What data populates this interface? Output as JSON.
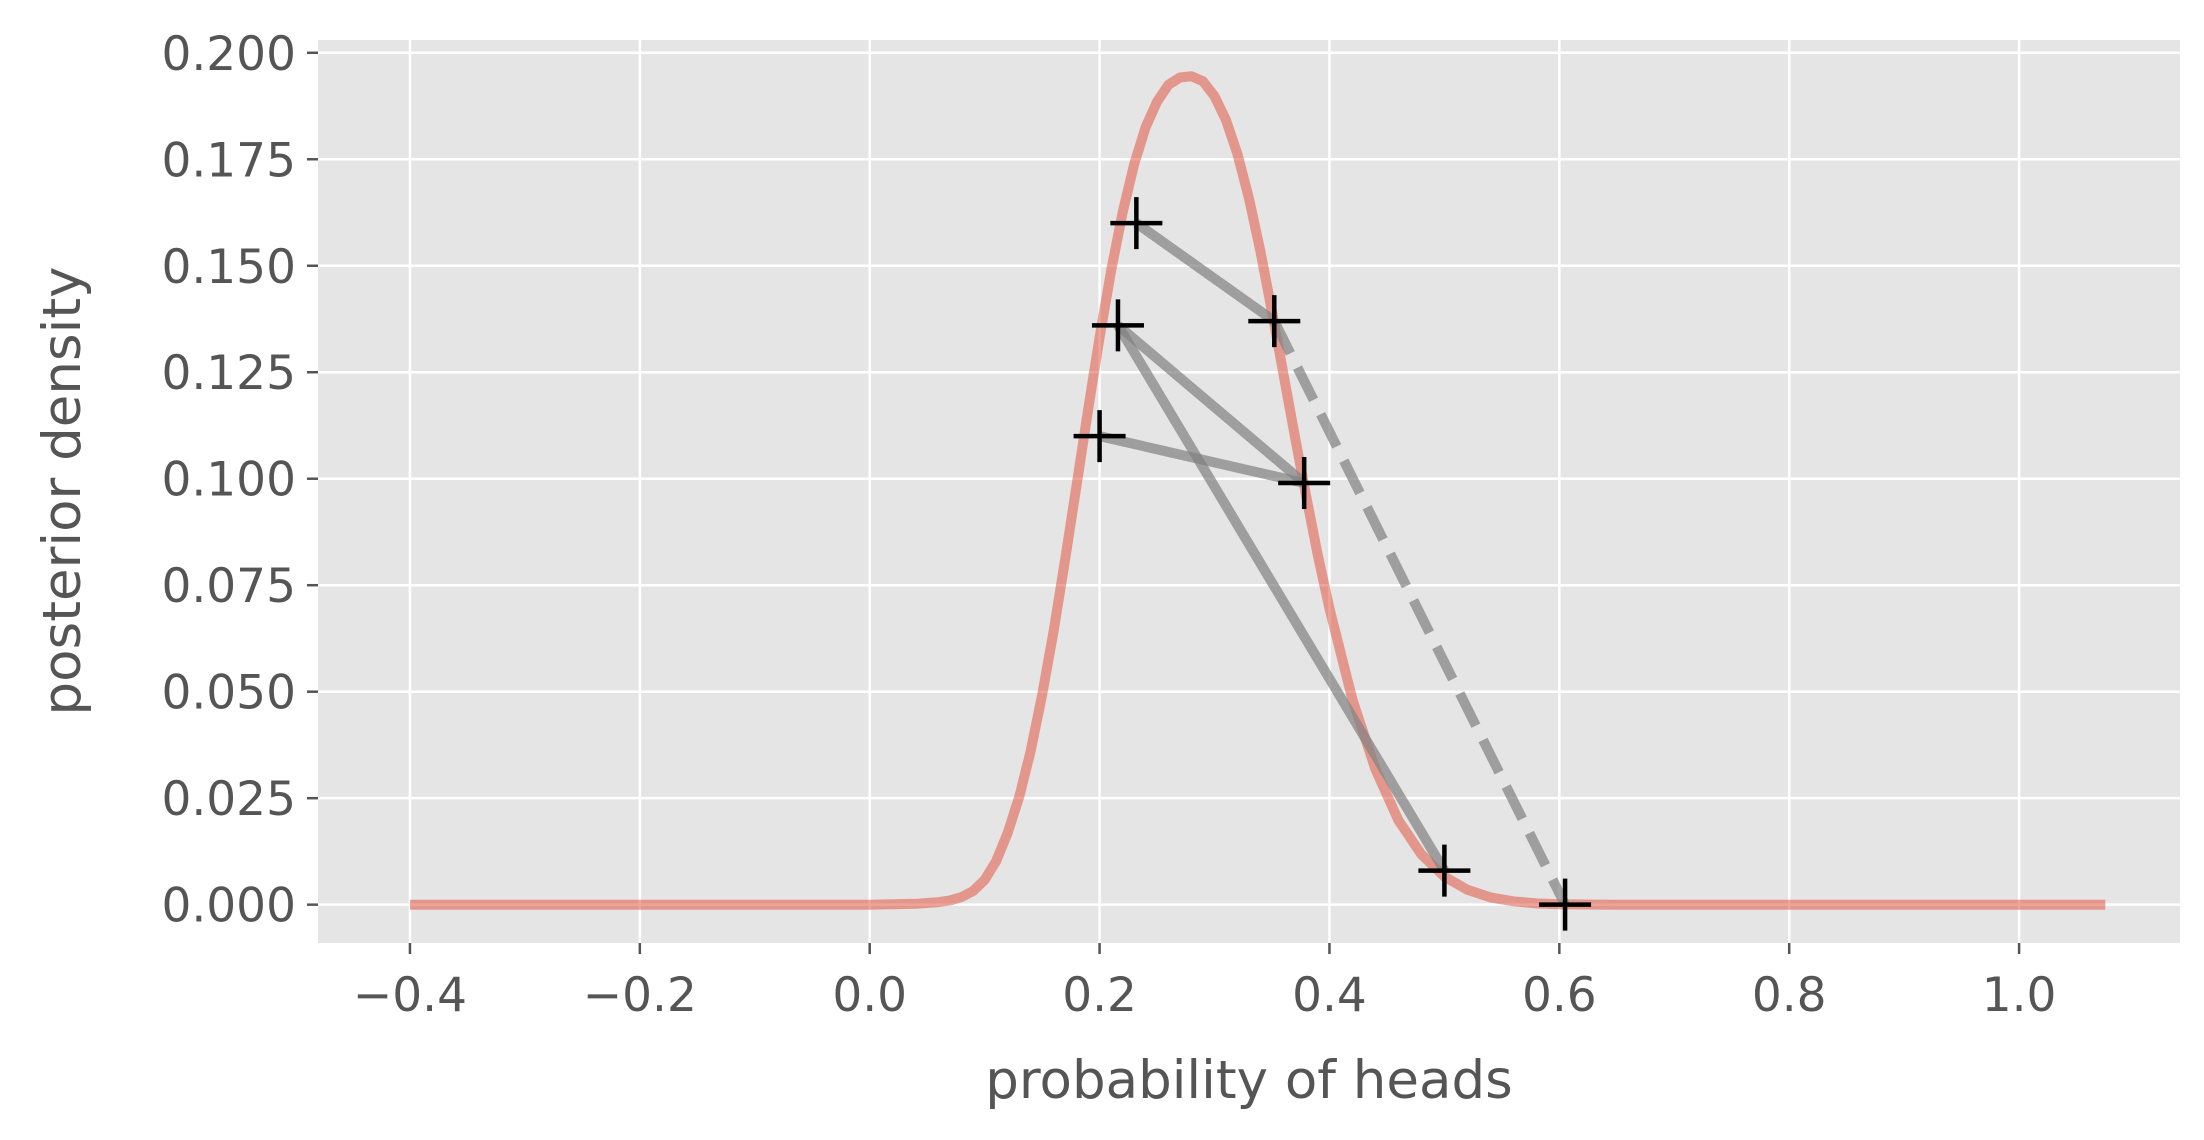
{
  "chart_data": {
    "type": "line",
    "title": "",
    "xlabel": "probability of heads",
    "ylabel": "posterior density",
    "xlim": [
      -0.48,
      1.14
    ],
    "ylim": [
      -0.009,
      0.203
    ],
    "grid": true,
    "legend": "none",
    "x_ticks": [
      -0.4,
      -0.2,
      0.0,
      0.2,
      0.4,
      0.6,
      0.8,
      1.0
    ],
    "x_tick_labels": [
      "−0.4",
      "−0.2",
      "0.0",
      "0.2",
      "0.4",
      "0.6",
      "0.8",
      "1.0"
    ],
    "y_ticks": [
      0.0,
      0.025,
      0.05,
      0.075,
      0.1,
      0.125,
      0.15,
      0.175,
      0.2
    ],
    "y_tick_labels": [
      "0.000",
      "0.025",
      "0.050",
      "0.075",
      "0.100",
      "0.125",
      "0.150",
      "0.175",
      "0.200"
    ],
    "curve": {
      "color": "#e24a33",
      "opacity": 0.5,
      "x": [
        -0.4,
        0.0,
        0.04,
        0.06,
        0.07,
        0.08,
        0.09,
        0.1,
        0.11,
        0.12,
        0.13,
        0.14,
        0.15,
        0.16,
        0.17,
        0.18,
        0.19,
        0.2,
        0.21,
        0.22,
        0.23,
        0.24,
        0.25,
        0.26,
        0.27,
        0.28,
        0.29,
        0.3,
        0.31,
        0.32,
        0.33,
        0.34,
        0.35,
        0.36,
        0.37,
        0.38,
        0.39,
        0.4,
        0.42,
        0.44,
        0.46,
        0.48,
        0.5,
        0.52,
        0.54,
        0.56,
        0.58,
        0.6,
        0.65,
        1.075
      ],
      "y": [
        0.0,
        0.0,
        0.0002,
        0.0006,
        0.001,
        0.0018,
        0.0032,
        0.0058,
        0.0102,
        0.0168,
        0.0252,
        0.036,
        0.0492,
        0.0642,
        0.081,
        0.0985,
        0.1162,
        0.1332,
        0.1488,
        0.1625,
        0.1738,
        0.1825,
        0.1885,
        0.1925,
        0.1942,
        0.1945,
        0.1933,
        0.1898,
        0.1842,
        0.1762,
        0.1658,
        0.1533,
        0.1392,
        0.1245,
        0.1098,
        0.0955,
        0.0818,
        0.0695,
        0.0482,
        0.0318,
        0.0198,
        0.0118,
        0.0066,
        0.0035,
        0.0017,
        0.0008,
        0.0003,
        0.0001,
        0.0,
        0.0
      ]
    },
    "simplex_segments": {
      "color": "#808080",
      "opacity": 0.7,
      "solid": [
        [
          [
            0.232,
            0.16
          ],
          [
            0.352,
            0.137
          ]
        ],
        [
          [
            0.216,
            0.136
          ],
          [
            0.378,
            0.099
          ]
        ],
        [
          [
            0.2,
            0.11
          ],
          [
            0.378,
            0.099
          ]
        ],
        [
          [
            0.216,
            0.136
          ],
          [
            0.5,
            0.008
          ]
        ]
      ],
      "dashed": [
        [
          [
            0.352,
            0.137
          ],
          [
            0.605,
            0.0
          ]
        ]
      ]
    },
    "markers": {
      "symbol": "+",
      "color": "#000000",
      "x": [
        0.232,
        0.216,
        0.352,
        0.2,
        0.378,
        0.5,
        0.605
      ],
      "y": [
        0.16,
        0.136,
        0.137,
        0.11,
        0.099,
        0.008,
        0.0
      ]
    }
  }
}
